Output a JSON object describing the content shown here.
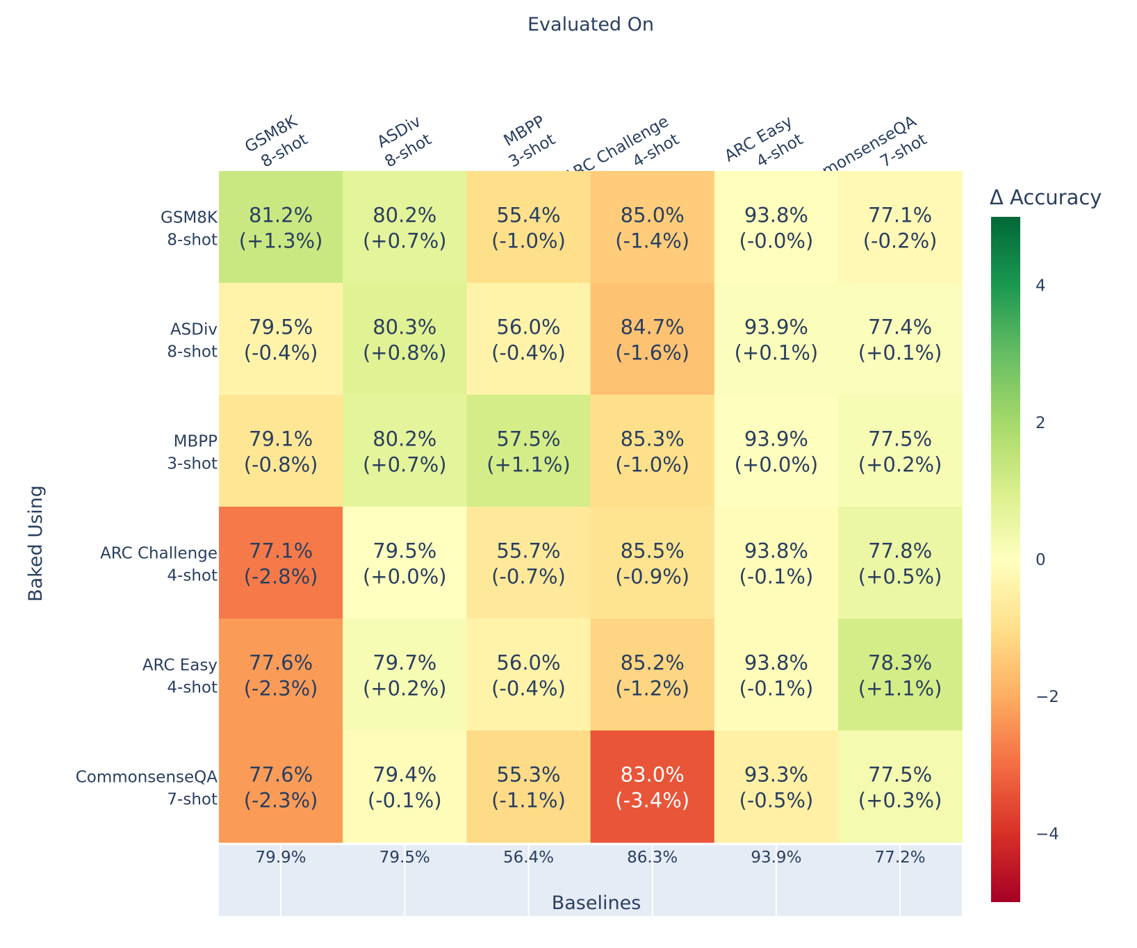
{
  "chart_data": {
    "type": "heatmap",
    "title": "Evaluated On",
    "ylabel": "Baked Using",
    "columns": [
      {
        "name": "GSM8K",
        "shots": "8-shot"
      },
      {
        "name": "ASDiv",
        "shots": "8-shot"
      },
      {
        "name": "MBPP",
        "shots": "3-shot"
      },
      {
        "name": "ARC Challenge",
        "shots": "4-shot"
      },
      {
        "name": "ARC Easy",
        "shots": "4-shot"
      },
      {
        "name": "CommonsenseQA",
        "shots": "7-shot"
      }
    ],
    "rows": [
      {
        "name": "GSM8K",
        "shots": "8-shot"
      },
      {
        "name": "ASDiv",
        "shots": "8-shot"
      },
      {
        "name": "MBPP",
        "shots": "3-shot"
      },
      {
        "name": "ARC Challenge",
        "shots": "4-shot"
      },
      {
        "name": "ARC Easy",
        "shots": "4-shot"
      },
      {
        "name": "CommonsenseQA",
        "shots": "7-shot"
      }
    ],
    "cells": [
      [
        {
          "acc": "81.2%",
          "delta": "(+1.3%)",
          "value": 1.3
        },
        {
          "acc": "80.2%",
          "delta": "(+0.7%)",
          "value": 0.7
        },
        {
          "acc": "55.4%",
          "delta": "(-1.0%)",
          "value": -1.0
        },
        {
          "acc": "85.0%",
          "delta": "(-1.4%)",
          "value": -1.4
        },
        {
          "acc": "93.8%",
          "delta": "(-0.0%)",
          "value": -0.04
        },
        {
          "acc": "77.1%",
          "delta": "(-0.2%)",
          "value": -0.2
        }
      ],
      [
        {
          "acc": "79.5%",
          "delta": "(-0.4%)",
          "value": -0.4
        },
        {
          "acc": "80.3%",
          "delta": "(+0.8%)",
          "value": 0.8
        },
        {
          "acc": "56.0%",
          "delta": "(-0.4%)",
          "value": -0.4
        },
        {
          "acc": "84.7%",
          "delta": "(-1.6%)",
          "value": -1.6
        },
        {
          "acc": "93.9%",
          "delta": "(+0.1%)",
          "value": 0.1
        },
        {
          "acc": "77.4%",
          "delta": "(+0.1%)",
          "value": 0.1
        }
      ],
      [
        {
          "acc": "79.1%",
          "delta": "(-0.8%)",
          "value": -0.8
        },
        {
          "acc": "80.2%",
          "delta": "(+0.7%)",
          "value": 0.7
        },
        {
          "acc": "57.5%",
          "delta": "(+1.1%)",
          "value": 1.1
        },
        {
          "acc": "85.3%",
          "delta": "(-1.0%)",
          "value": -1.0
        },
        {
          "acc": "93.9%",
          "delta": "(+0.0%)",
          "value": 0.02
        },
        {
          "acc": "77.5%",
          "delta": "(+0.2%)",
          "value": 0.2
        }
      ],
      [
        {
          "acc": "77.1%",
          "delta": "(-2.8%)",
          "value": -2.8
        },
        {
          "acc": "79.5%",
          "delta": "(+0.0%)",
          "value": 0.0
        },
        {
          "acc": "55.7%",
          "delta": "(-0.7%)",
          "value": -0.7
        },
        {
          "acc": "85.5%",
          "delta": "(-0.9%)",
          "value": -0.9
        },
        {
          "acc": "93.8%",
          "delta": "(-0.1%)",
          "value": -0.1
        },
        {
          "acc": "77.8%",
          "delta": "(+0.5%)",
          "value": 0.5
        }
      ],
      [
        {
          "acc": "77.6%",
          "delta": "(-2.3%)",
          "value": -2.3
        },
        {
          "acc": "79.7%",
          "delta": "(+0.2%)",
          "value": 0.2
        },
        {
          "acc": "56.0%",
          "delta": "(-0.4%)",
          "value": -0.4
        },
        {
          "acc": "85.2%",
          "delta": "(-1.2%)",
          "value": -1.2
        },
        {
          "acc": "93.8%",
          "delta": "(-0.1%)",
          "value": -0.1
        },
        {
          "acc": "78.3%",
          "delta": "(+1.1%)",
          "value": 1.1
        }
      ],
      [
        {
          "acc": "77.6%",
          "delta": "(-2.3%)",
          "value": -2.3
        },
        {
          "acc": "79.4%",
          "delta": "(-0.1%)",
          "value": -0.1
        },
        {
          "acc": "55.3%",
          "delta": "(-1.1%)",
          "value": -1.1
        },
        {
          "acc": "83.0%",
          "delta": "(-3.4%)",
          "value": -3.4
        },
        {
          "acc": "93.3%",
          "delta": "(-0.5%)",
          "value": -0.5
        },
        {
          "acc": "77.5%",
          "delta": "(+0.3%)",
          "value": 0.3
        }
      ]
    ],
    "baselines": {
      "label": "Baselines",
      "values": [
        "79.9%",
        "79.5%",
        "56.4%",
        "86.3%",
        "93.9%",
        "77.2%"
      ]
    },
    "colorbar": {
      "title": "Δ Accuracy",
      "range": [
        -5,
        5
      ],
      "ticks": [
        4,
        2,
        0,
        -2,
        -4
      ],
      "tick_labels": [
        "4",
        "2",
        "0",
        "−2",
        "−4"
      ],
      "colorscale": "RdYlGn"
    }
  }
}
